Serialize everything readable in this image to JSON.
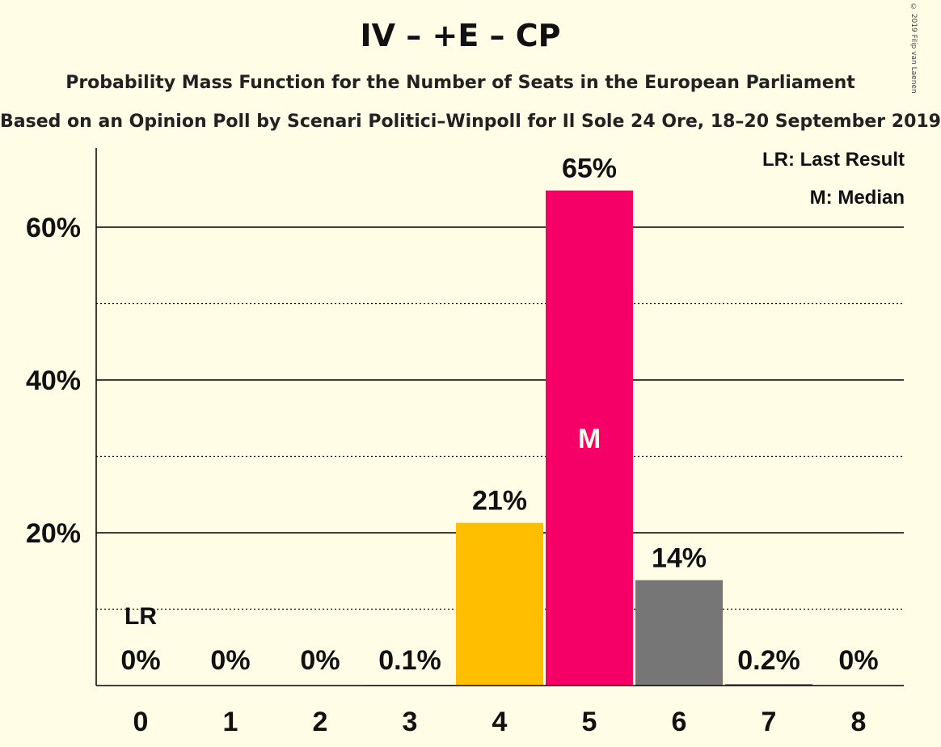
{
  "title": "IV – +E – CP",
  "subtitle": "Probability Mass Function for the Number of Seats in the European Parliament",
  "subtitle2": "Based on an Opinion Poll by Scenari Politici–Winpoll for Il Sole 24 Ore, 18–20 September 2019",
  "copyright": "© 2019 Filip van Laenen",
  "legend": {
    "last_result": "LR: Last Result",
    "median": "M: Median"
  },
  "colors": {
    "background": "#fffde6",
    "bar_before_median": "#ffbf00",
    "bar_median": "#f50067",
    "bar_after_median": "#767676"
  },
  "chart_data": {
    "type": "bar",
    "categories": [
      "0",
      "1",
      "2",
      "3",
      "4",
      "5",
      "6",
      "7",
      "8"
    ],
    "values": [
      0,
      0,
      0,
      0.1,
      21.3,
      64.8,
      13.8,
      0.2,
      0
    ],
    "value_labels": [
      "0%",
      "0%",
      "0%",
      "0.1%",
      "21%",
      "65%",
      "14%",
      "0.2%",
      "0%"
    ],
    "bar_colors": [
      "#ffbf00",
      "#ffbf00",
      "#ffbf00",
      "#ffbf00",
      "#ffbf00",
      "#f50067",
      "#767676",
      "#767676",
      "#767676"
    ],
    "yticks": [
      20,
      40,
      60
    ],
    "ytick_labels": [
      "20%",
      "40%",
      "60%"
    ],
    "minor_gridlines": [
      10,
      30,
      50
    ],
    "ylim": [
      0,
      70.5
    ],
    "last_result_seat": 0,
    "last_result_label": "LR",
    "median_seat": 5,
    "median_label": "M"
  }
}
